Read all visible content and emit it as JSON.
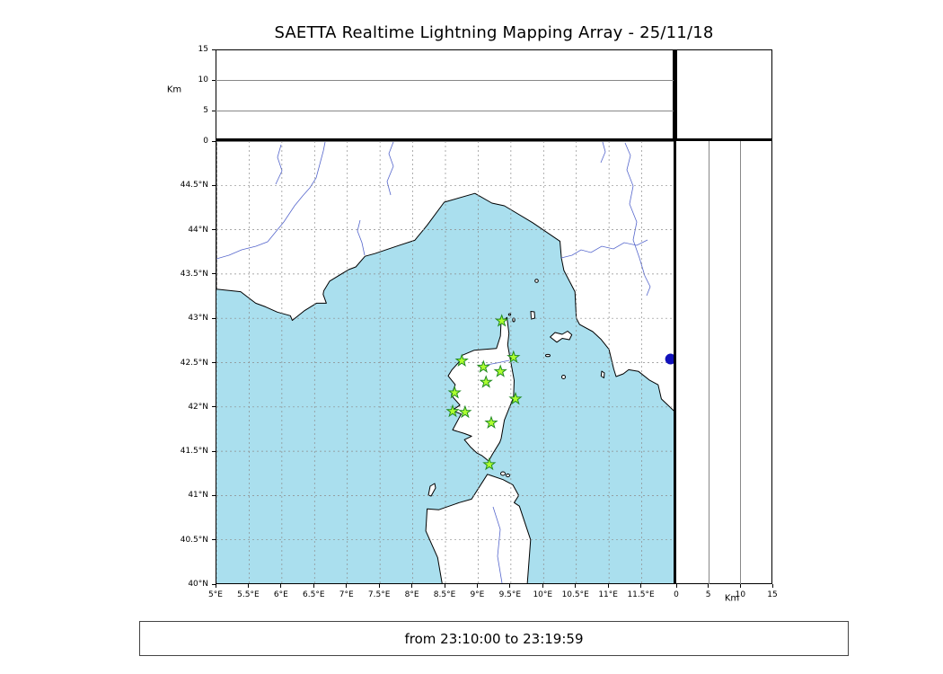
{
  "title": "SAETTA Realtime Lightning Mapping Array - 25/11/18",
  "footer": "from 23:10:00 to 23:19:59",
  "colors": {
    "sea": "#aadfee",
    "land": "#ffffff",
    "coastline": "#000000",
    "river": "#5566cc",
    "grid": "#8c8c8c",
    "station_fill": "#adff2f",
    "station_edge": "#228b22",
    "extra_point": "#1111bb"
  },
  "chart_data": {
    "type": "scatter",
    "title": "SAETTA Realtime Lightning Mapping Array - 25/11/18",
    "time_window": "from 23:10:00 to 23:19:59",
    "map_panel": {
      "xlim": [
        5,
        12
      ],
      "ylim": [
        40,
        45
      ],
      "x_tick_values": [
        5,
        5.5,
        6,
        6.5,
        7,
        7.5,
        8,
        8.5,
        9,
        9.5,
        10,
        10.5,
        11,
        11.5
      ],
      "x_tick_labels": [
        "5°E",
        "5.5°E",
        "6°E",
        "6.5°E",
        "7°E",
        "7.5°E",
        "8°E",
        "8.5°E",
        "9°E",
        "9.5°E",
        "10°E",
        "10.5°E",
        "11°E",
        "11.5°E"
      ],
      "y_tick_values": [
        44.5,
        44,
        43.5,
        43,
        42.5,
        42,
        41.5,
        41,
        40.5,
        40
      ],
      "y_tick_labels": [
        "44.5°N",
        "44°N",
        "43.5°N",
        "43°N",
        "42.5°N",
        "42°N",
        "41.5°N",
        "41°N",
        "40.5°N",
        "40°N"
      ],
      "grid": "dashed"
    },
    "altitude_panels": {
      "ylabel": "Km",
      "tick_values": [
        0,
        5,
        10,
        15
      ],
      "tick_labels": [
        "0",
        "5",
        "10",
        "15"
      ],
      "lim": [
        0,
        15
      ],
      "gridline_values": [
        5,
        10
      ]
    },
    "stations": [
      {
        "lon": 9.36,
        "lat": 42.97
      },
      {
        "lon": 9.54,
        "lat": 42.56
      },
      {
        "lon": 8.75,
        "lat": 42.52
      },
      {
        "lon": 9.08,
        "lat": 42.45
      },
      {
        "lon": 9.34,
        "lat": 42.4
      },
      {
        "lon": 9.12,
        "lat": 42.28
      },
      {
        "lon": 8.64,
        "lat": 42.16
      },
      {
        "lon": 9.57,
        "lat": 42.09
      },
      {
        "lon": 8.61,
        "lat": 41.95
      },
      {
        "lon": 8.8,
        "lat": 41.94
      },
      {
        "lon": 9.2,
        "lat": 41.82
      },
      {
        "lon": 9.17,
        "lat": 41.35
      }
    ],
    "lightning_points": [],
    "extra_point": {
      "lon": 11.94,
      "lat": 42.54
    }
  }
}
